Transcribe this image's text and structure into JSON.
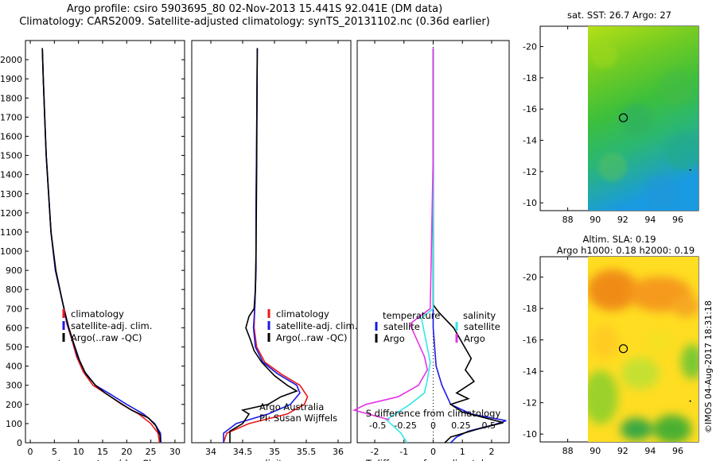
{
  "header": {
    "line1": "Argo profile: csiro 5903695_80 02-Nov-2013 15.441S 92.041E (DM data)",
    "line2": "Climatology: CARS2009. Satellite-adjusted climatology: synTS_20131102.nc (0.36d earlier)"
  },
  "colors": {
    "climatology": "#e8191a",
    "satellite": "#1a1ae8",
    "argo": "#000000",
    "sal_satellite": "#33e6e6",
    "sal_argo": "#e633e6"
  },
  "chart_data": [
    {
      "type": "line",
      "id": "temperature",
      "xlabel": "temperature (deg C)",
      "ylabel": "",
      "xlim": [
        -1,
        32
      ],
      "ylim": [
        2100,
        0
      ],
      "xticks": [
        0,
        5,
        10,
        15,
        20,
        25,
        30
      ],
      "yticks": [
        0,
        100,
        200,
        300,
        400,
        500,
        600,
        700,
        800,
        900,
        1000,
        1100,
        1200,
        1300,
        1400,
        1500,
        1600,
        1700,
        1800,
        1900,
        2000
      ],
      "legend": [
        "climatology",
        "satellite-adj. clim.",
        "Argo(..raw -QC)"
      ],
      "series": [
        {
          "name": "climatology",
          "color": "#e8191a",
          "points": [
            [
              26.8,
              0
            ],
            [
              26.5,
              50
            ],
            [
              25,
              100
            ],
            [
              22.5,
              150
            ],
            [
              19,
              200
            ],
            [
              15.5,
              260
            ],
            [
              13,
              300
            ],
            [
              11,
              370
            ],
            [
              9.6,
              450
            ],
            [
              8.6,
              540
            ],
            [
              7.6,
              620
            ],
            [
              7,
              700
            ],
            [
              5.2,
              900
            ],
            [
              4.3,
              1100
            ],
            [
              3.8,
              1300
            ],
            [
              3.3,
              1500
            ],
            [
              3,
              1700
            ],
            [
              2.7,
              1900
            ],
            [
              2.5,
              2060
            ]
          ]
        },
        {
          "name": "satellite-adj. clim.",
          "color": "#1a1ae8",
          "points": [
            [
              27.1,
              0
            ],
            [
              27,
              50
            ],
            [
              25.8,
              100
            ],
            [
              23.5,
              150
            ],
            [
              20,
              200
            ],
            [
              16.5,
              255
            ],
            [
              13.5,
              300
            ],
            [
              11.3,
              370
            ],
            [
              9.8,
              450
            ],
            [
              8.7,
              540
            ],
            [
              7.7,
              620
            ],
            [
              7,
              700
            ],
            [
              5.2,
              900
            ],
            [
              4.3,
              1100
            ],
            [
              3.8,
              1300
            ],
            [
              3.3,
              1500
            ],
            [
              3,
              1700
            ],
            [
              2.7,
              1900
            ],
            [
              2.5,
              2060
            ]
          ]
        },
        {
          "name": "Argo(..raw -QC)",
          "color": "#000000",
          "points": [
            [
              27,
              5
            ],
            [
              26.9,
              40
            ],
            [
              26,
              90
            ],
            [
              24.5,
              130
            ],
            [
              21,
              170
            ],
            [
              18.5,
              210
            ],
            [
              15.5,
              260
            ],
            [
              13.5,
              300
            ],
            [
              11.5,
              360
            ],
            [
              10.2,
              430
            ],
            [
              9,
              520
            ],
            [
              8,
              600
            ],
            [
              7.2,
              680
            ],
            [
              6.8,
              720
            ],
            [
              5.3,
              900
            ],
            [
              4.3,
              1100
            ],
            [
              3.8,
              1300
            ],
            [
              3.3,
              1500
            ],
            [
              3,
              1700
            ],
            [
              2.7,
              1900
            ],
            [
              2.5,
              2060
            ]
          ]
        }
      ]
    },
    {
      "type": "line",
      "id": "salinity",
      "xlabel": "salinity",
      "xlim": [
        33.7,
        36.2
      ],
      "ylim": [
        2100,
        0
      ],
      "xticks": [
        34,
        34.5,
        35,
        35.5,
        36
      ],
      "legend": [
        "climatology",
        "satellite-adj. clim.",
        "Argo(..raw -QC)"
      ],
      "annotation": [
        "Argo Australia",
        "PI: Susan Wijffels"
      ],
      "series": [
        {
          "name": "climatology",
          "color": "#e8191a",
          "points": [
            [
              34.2,
              0
            ],
            [
              34.25,
              50
            ],
            [
              34.6,
              100
            ],
            [
              35.2,
              150
            ],
            [
              35.47,
              200
            ],
            [
              35.52,
              240
            ],
            [
              35.4,
              300
            ],
            [
              35.1,
              360
            ],
            [
              34.85,
              420
            ],
            [
              34.72,
              500
            ],
            [
              34.68,
              600
            ],
            [
              34.69,
              700
            ],
            [
              34.71,
              900
            ],
            [
              34.71,
              1200
            ],
            [
              34.72,
              1600
            ],
            [
              34.73,
              2060
            ]
          ]
        },
        {
          "name": "satellite-adj. clim.",
          "color": "#1a1ae8",
          "points": [
            [
              34.2,
              0
            ],
            [
              34.2,
              50
            ],
            [
              34.4,
              100
            ],
            [
              34.9,
              150
            ],
            [
              35.25,
              200
            ],
            [
              35.4,
              260
            ],
            [
              35.35,
              300
            ],
            [
              35.05,
              360
            ],
            [
              34.82,
              420
            ],
            [
              34.7,
              500
            ],
            [
              34.67,
              600
            ],
            [
              34.69,
              700
            ],
            [
              34.71,
              900
            ],
            [
              34.71,
              1200
            ],
            [
              34.72,
              1600
            ],
            [
              34.73,
              2060
            ]
          ]
        },
        {
          "name": "Argo(..raw -QC)",
          "color": "#000000",
          "points": [
            [
              34.3,
              0
            ],
            [
              34.3,
              60
            ],
            [
              34.5,
              100
            ],
            [
              34.6,
              150
            ],
            [
              34.5,
              170
            ],
            [
              34.9,
              200
            ],
            [
              35.1,
              240
            ],
            [
              35.35,
              270
            ],
            [
              35.2,
              300
            ],
            [
              35.0,
              350
            ],
            [
              34.8,
              420
            ],
            [
              34.68,
              480
            ],
            [
              34.62,
              540
            ],
            [
              34.55,
              600
            ],
            [
              34.6,
              660
            ],
            [
              34.68,
              700
            ],
            [
              34.7,
              800
            ],
            [
              34.71,
              1000
            ],
            [
              34.72,
              1400
            ],
            [
              34.73,
              2060
            ]
          ]
        }
      ]
    },
    {
      "type": "line",
      "id": "difference",
      "xlabel": "T difference from climatology",
      "xlabel_top": "S difference from climatology",
      "xlim": [
        -2.6,
        2.6
      ],
      "ylim": [
        2100,
        0
      ],
      "xticks": [
        -2,
        -1,
        0,
        1,
        2
      ],
      "xticks_s": [
        "-0.5",
        "-0.25",
        "0",
        "0.25",
        "0.5"
      ],
      "legend_titles": [
        "temperature",
        "salinity"
      ],
      "legend_left": [
        "satellite",
        "Argo"
      ],
      "legend_right": [
        "satellite",
        "Argo"
      ],
      "series": [
        {
          "name": "T satellite",
          "color": "#1a1ae8",
          "points": [
            [
              0.6,
              0
            ],
            [
              0.8,
              30
            ],
            [
              1.2,
              60
            ],
            [
              2.1,
              95
            ],
            [
              2.5,
              115
            ],
            [
              1.3,
              150
            ],
            [
              0.6,
              200
            ],
            [
              0.3,
              300
            ],
            [
              0.1,
              400
            ],
            [
              0,
              600
            ],
            [
              0,
              1000
            ],
            [
              0,
              2060
            ]
          ]
        },
        {
          "name": "T Argo",
          "color": "#000000",
          "points": [
            [
              0.4,
              0
            ],
            [
              0.6,
              30
            ],
            [
              1.5,
              70
            ],
            [
              2.4,
              105
            ],
            [
              1,
              160
            ],
            [
              0.6,
              200
            ],
            [
              1.2,
              230
            ],
            [
              0.8,
              260
            ],
            [
              1.4,
              320
            ],
            [
              1.1,
              380
            ],
            [
              1.3,
              440
            ],
            [
              1.0,
              520
            ],
            [
              0.7,
              600
            ],
            [
              0.2,
              680
            ],
            [
              0,
              720
            ],
            [
              0,
              1000
            ],
            [
              0,
              2060
            ]
          ]
        },
        {
          "name": "S satellite",
          "color": "#33e6e6",
          "points": [
            [
              -0.9,
              0
            ],
            [
              -1.1,
              50
            ],
            [
              -1.6,
              120
            ],
            [
              -0.8,
              200
            ],
            [
              -0.3,
              260
            ],
            [
              -0.2,
              330
            ],
            [
              -0.1,
              420
            ],
            [
              -0.4,
              650
            ],
            [
              0,
              700
            ],
            [
              0,
              1500
            ],
            [
              0,
              2060
            ]
          ]
        },
        {
          "name": "S Argo",
          "color": "#e633e6",
          "points": [
            [
              -1.5,
              120
            ],
            [
              -2.7,
              170
            ],
            [
              -2.3,
              200
            ],
            [
              -1.2,
              240
            ],
            [
              -0.5,
              300
            ],
            [
              -0.2,
              380
            ],
            [
              -0.3,
              450
            ],
            [
              -0.8,
              620
            ],
            [
              -0.1,
              700
            ],
            [
              0,
              1500
            ],
            [
              0,
              2060
            ]
          ]
        }
      ]
    },
    {
      "type": "heatmap",
      "id": "sst-map",
      "title": "sat. SST: 26.7  Argo: 27",
      "xlim": [
        86,
        97.5
      ],
      "ylim": [
        -21.3,
        -9.5
      ],
      "xticks": [
        88,
        90,
        92,
        94,
        96
      ],
      "yticks": [
        -10,
        -12,
        -14,
        -16,
        -18,
        -20
      ],
      "marker": [
        92.041,
        -15.441
      ]
    },
    {
      "type": "heatmap",
      "id": "sla-map",
      "title": "Altim. SLA: 0.19",
      "subtitle": "Argo h1000: 0.18 h2000: 0.19",
      "xlim": [
        86,
        97.5
      ],
      "ylim": [
        -21.3,
        -9.5
      ],
      "xticks": [
        88,
        90,
        92,
        94,
        96
      ],
      "yticks": [
        -10,
        -12,
        -14,
        -16,
        -18,
        -20
      ],
      "marker": [
        92.041,
        -15.441
      ]
    }
  ],
  "footer": {
    "stamp": "©IMOS 04-Aug-2017 18:31:18"
  }
}
